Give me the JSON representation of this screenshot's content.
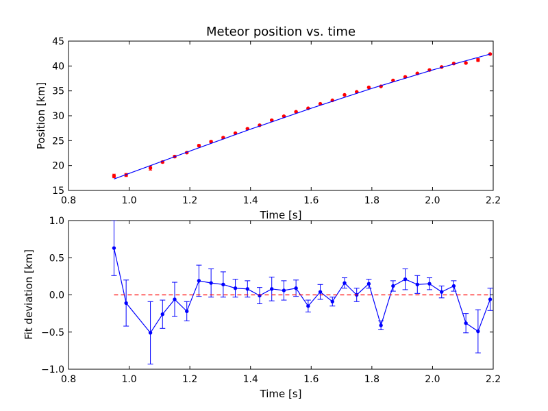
{
  "chart_data": [
    {
      "type": "scatter",
      "title": "Meteor position vs. time",
      "xlabel": "Time [s]",
      "ylabel": "Position [km]",
      "xlim": [
        0.8,
        2.2
      ],
      "ylim": [
        15,
        45
      ],
      "xticks": [
        "0.8",
        "1.0",
        "1.2",
        "1.4",
        "1.6",
        "1.8",
        "2.0",
        "2.2"
      ],
      "yticks": [
        "15",
        "20",
        "25",
        "30",
        "35",
        "40",
        "45"
      ],
      "grid": false,
      "series": [
        {
          "kind": "errorbar-points",
          "color": "#ff0000",
          "x": [
            0.95,
            0.99,
            1.07,
            1.11,
            1.15,
            1.19,
            1.23,
            1.27,
            1.31,
            1.35,
            1.39,
            1.43,
            1.47,
            1.51,
            1.55,
            1.59,
            1.63,
            1.67,
            1.71,
            1.75,
            1.79,
            1.83,
            1.87,
            1.91,
            1.95,
            1.99,
            2.03,
            2.07,
            2.11,
            2.15,
            2.19
          ],
          "y": [
            17.9,
            18.1,
            19.5,
            20.7,
            21.8,
            22.6,
            24.0,
            24.8,
            25.6,
            26.5,
            27.4,
            28.1,
            29.1,
            29.9,
            30.8,
            31.5,
            32.4,
            33.1,
            34.2,
            34.8,
            35.7,
            35.9,
            37.1,
            37.8,
            38.5,
            39.2,
            39.8,
            40.5,
            40.6,
            41.2,
            42.4
          ],
          "yerr": [
            0.37,
            0.31,
            0.42,
            0.19,
            0.23,
            0.13,
            0.21,
            0.19,
            0.17,
            0.12,
            0.11,
            0.11,
            0.16,
            0.13,
            0.11,
            0.08,
            0.1,
            0.06,
            0.07,
            0.09,
            0.06,
            0.06,
            0.07,
            0.14,
            0.12,
            0.08,
            0.08,
            0.07,
            0.13,
            0.29,
            0.15
          ]
        },
        {
          "kind": "fit-line",
          "color": "#0000ff",
          "x": [
            0.95,
            1.2,
            1.4,
            1.6,
            1.8,
            2.0,
            2.19
          ],
          "y": [
            17.3,
            22.9,
            27.3,
            31.5,
            35.5,
            39.2,
            42.4
          ]
        }
      ]
    },
    {
      "type": "line",
      "title": "",
      "xlabel": "Time [s]",
      "ylabel": "Fit deviation [km]",
      "xlim": [
        0.8,
        2.2
      ],
      "ylim": [
        -1.0,
        1.0
      ],
      "xticks": [
        "0.8",
        "1.0",
        "1.2",
        "1.4",
        "1.6",
        "1.8",
        "2.0",
        "2.2"
      ],
      "yticks": [
        "−1.0",
        "−0.5",
        "0.0",
        "0.5",
        "1.0"
      ],
      "grid": false,
      "series": [
        {
          "kind": "errorbar-line",
          "color": "#0000ff",
          "x": [
            0.95,
            0.99,
            1.07,
            1.11,
            1.15,
            1.19,
            1.23,
            1.27,
            1.31,
            1.35,
            1.39,
            1.43,
            1.47,
            1.51,
            1.55,
            1.59,
            1.63,
            1.67,
            1.71,
            1.75,
            1.79,
            1.83,
            1.87,
            1.91,
            1.95,
            1.99,
            2.03,
            2.07,
            2.11,
            2.15,
            2.19
          ],
          "y": [
            0.63,
            -0.11,
            -0.51,
            -0.26,
            -0.06,
            -0.22,
            0.19,
            0.16,
            0.14,
            0.09,
            0.08,
            -0.01,
            0.08,
            0.06,
            0.09,
            -0.15,
            0.04,
            -0.09,
            0.16,
            0.0,
            0.15,
            -0.41,
            0.12,
            0.21,
            0.14,
            0.15,
            0.04,
            0.12,
            -0.38,
            -0.49,
            -0.06
          ],
          "yerr": [
            0.37,
            0.31,
            0.42,
            0.19,
            0.23,
            0.13,
            0.21,
            0.19,
            0.17,
            0.12,
            0.11,
            0.11,
            0.16,
            0.13,
            0.11,
            0.08,
            0.1,
            0.06,
            0.07,
            0.09,
            0.06,
            0.06,
            0.07,
            0.14,
            0.12,
            0.08,
            0.08,
            0.07,
            0.13,
            0.29,
            0.15
          ]
        },
        {
          "kind": "reference-line",
          "color": "#ff0000",
          "x": [
            0.95,
            2.19
          ],
          "y": [
            0.0,
            0.0
          ]
        }
      ]
    }
  ]
}
